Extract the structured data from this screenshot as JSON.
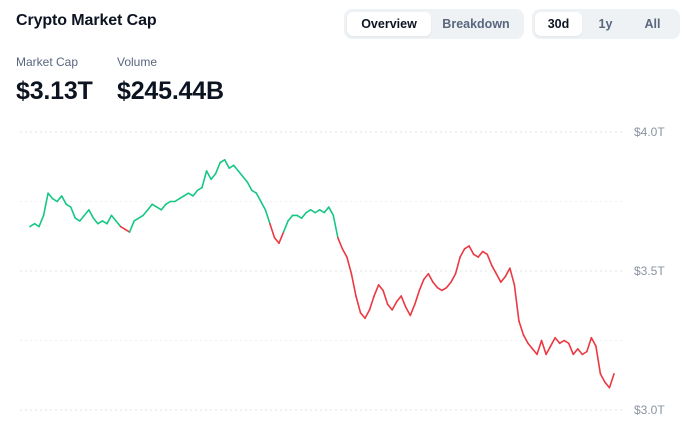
{
  "header": {
    "title": "Crypto Market Cap",
    "view_tabs": [
      {
        "label": "Overview",
        "active": true
      },
      {
        "label": "Breakdown",
        "active": false
      }
    ],
    "range_tabs": [
      {
        "label": "30d",
        "active": true
      },
      {
        "label": "1y",
        "active": false
      },
      {
        "label": "All",
        "active": false
      }
    ]
  },
  "stats": {
    "market_cap_label": "Market Cap",
    "market_cap_value": "$3.13T",
    "volume_label": "Volume",
    "volume_value": "$245.44B"
  },
  "colors": {
    "up": "#16c784",
    "down": "#ea3943",
    "grid": "#dfe3e8",
    "axis_text": "#8a939f"
  },
  "chart_data": {
    "type": "line",
    "series": [
      {
        "values": [
          3.66,
          3.67,
          3.66,
          3.7,
          3.78,
          3.76,
          3.75,
          3.77,
          3.74,
          3.73,
          3.69,
          3.68,
          3.7,
          3.72,
          3.69,
          3.67,
          3.68,
          3.67,
          3.7,
          3.68,
          3.66,
          3.65,
          3.64,
          3.68,
          3.69,
          3.7,
          3.72,
          3.74,
          3.73,
          3.72,
          3.74,
          3.75,
          3.75,
          3.76,
          3.77,
          3.78,
          3.77,
          3.79,
          3.8,
          3.86,
          3.83,
          3.85,
          3.89,
          3.9,
          3.87,
          3.88,
          3.86,
          3.84,
          3.82,
          3.79,
          3.78,
          3.75,
          3.72,
          3.67,
          3.62,
          3.6,
          3.64,
          3.68,
          3.7,
          3.7,
          3.69,
          3.71,
          3.72,
          3.71,
          3.72,
          3.71,
          3.73,
          3.7,
          3.62,
          3.58,
          3.55,
          3.49,
          3.41,
          3.35,
          3.33,
          3.36,
          3.41,
          3.45,
          3.43,
          3.38,
          3.36,
          3.39,
          3.41,
          3.37,
          3.34,
          3.38,
          3.43,
          3.47,
          3.49,
          3.46,
          3.44,
          3.43,
          3.44,
          3.46,
          3.49,
          3.55,
          3.58,
          3.59,
          3.56,
          3.55,
          3.57,
          3.56,
          3.52,
          3.49,
          3.46,
          3.48,
          3.51,
          3.45,
          3.32,
          3.27,
          3.24,
          3.22,
          3.2,
          3.25,
          3.2,
          3.23,
          3.26,
          3.24,
          3.25,
          3.24,
          3.2,
          3.22,
          3.2,
          3.21,
          3.26,
          3.23,
          3.13,
          3.1,
          3.08,
          3.13
        ],
        "color_rule": "green above opening value, red below"
      }
    ],
    "y_ticks": [
      "$4.0T",
      "$3.5T",
      "$3.0T"
    ],
    "ylim": [
      2.95,
      4.0
    ],
    "grid": true
  }
}
